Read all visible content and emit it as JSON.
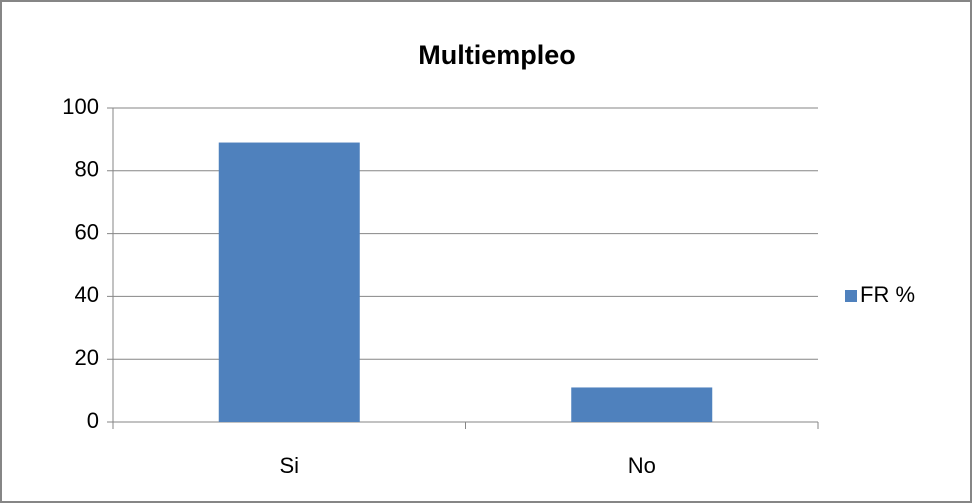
{
  "chart_data": {
    "type": "bar",
    "title": "Multiempleo",
    "categories": [
      "Si",
      "No"
    ],
    "series": [
      {
        "name": "FR %",
        "color": "#4f81bd",
        "values": [
          89,
          11
        ]
      }
    ],
    "ylim": [
      0,
      100
    ],
    "yticks": [
      0,
      20,
      40,
      60,
      80,
      100
    ],
    "grid": true,
    "legend": "right"
  }
}
